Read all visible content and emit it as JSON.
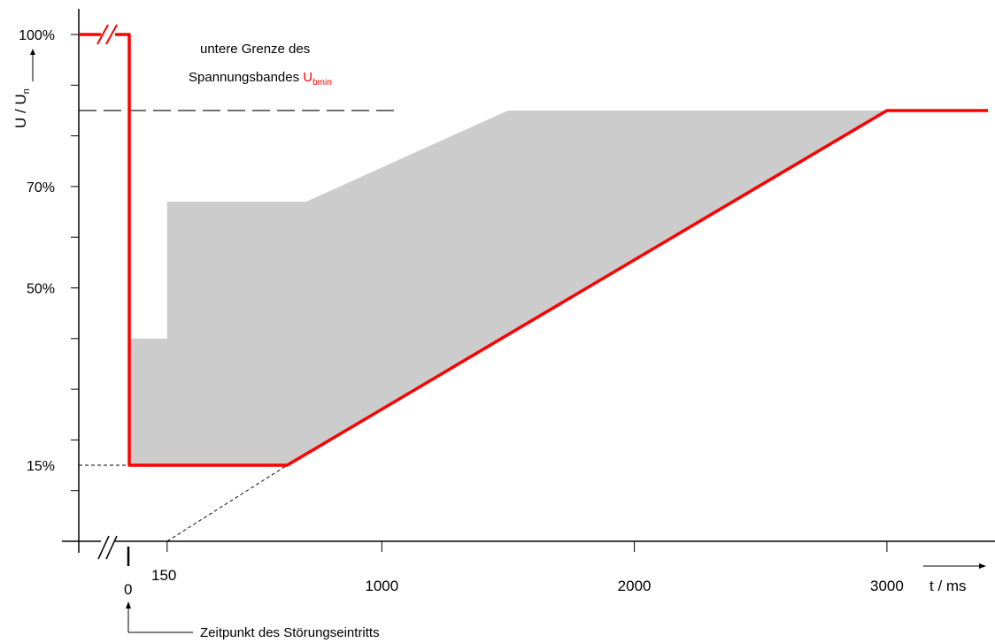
{
  "chart_data": {
    "type": "line",
    "ylabel_main": "U / U",
    "ylabel_sub": "n",
    "xlabel": "t / ms",
    "y_ticks": [
      {
        "value": 100,
        "label": "100%"
      },
      {
        "value": 70,
        "label": "70%"
      },
      {
        "value": 50,
        "label": "50%"
      },
      {
        "value": 15,
        "label": "15%"
      }
    ],
    "y_minor_ticks": [
      0,
      10,
      20,
      30,
      40,
      50,
      60,
      70,
      80,
      90,
      100
    ],
    "x_ticks": [
      {
        "value": 1000,
        "label": "1000"
      },
      {
        "value": 2000,
        "label": "2000"
      },
      {
        "value": 3000,
        "label": "3000"
      }
    ],
    "x_zero_label": "0",
    "x_150_label": "150",
    "annotation": {
      "line1": "untere Grenze des",
      "line2_prefix": "Spannungsbandes ",
      "line2_symbol": "U",
      "line2_subscript": "bmin"
    },
    "footnote": "Zeitpunkt des Störungseintritts",
    "band_level": 85,
    "series": [
      {
        "name": "red-curve",
        "color": "#ff0000",
        "points": [
          [
            -200,
            100
          ],
          [
            0,
            100
          ],
          [
            0,
            15
          ],
          [
            625,
            15
          ],
          [
            3000,
            85
          ],
          [
            3400,
            85
          ]
        ]
      }
    ],
    "shaded_region": {
      "color": "#cccccc",
      "points": [
        [
          0,
          40
        ],
        [
          150,
          40
        ],
        [
          150,
          67
        ],
        [
          700,
          67
        ],
        [
          1500,
          85
        ],
        [
          3000,
          85
        ],
        [
          625,
          15
        ],
        [
          0,
          15
        ]
      ]
    },
    "dashed_extension": {
      "points": [
        [
          150,
          0
        ],
        [
          625,
          15
        ]
      ]
    },
    "colors": {
      "curve": "#ff0000",
      "shade": "#cccccc",
      "axis": "#000000"
    }
  }
}
